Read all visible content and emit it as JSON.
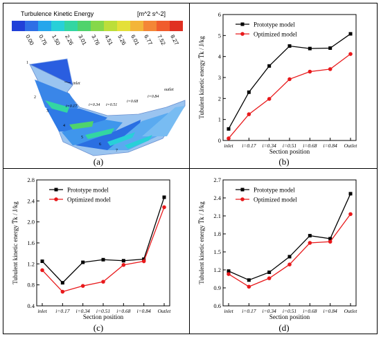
{
  "panel_labels": [
    "(a)",
    "(b)",
    "(c)",
    "(d)"
  ],
  "contour": {
    "title": "Turbulence Kinetic Energy",
    "unit": "[m^2 s^-2]",
    "colors": [
      "#2040d8",
      "#2e6fe6",
      "#25a6ec",
      "#28d0d8",
      "#33d6a2",
      "#4fd36c",
      "#86d84a",
      "#bcde3a",
      "#e4e03a",
      "#f3b53a",
      "#f48636",
      "#f05c2d",
      "#e03022"
    ],
    "ticks": [
      "0.00",
      "0.75",
      "1.50",
      "2.26",
      "3.01",
      "3.76",
      "4.51",
      "5.26",
      "6.01",
      "6.77",
      "7.52",
      "8.27"
    ],
    "annotations": {
      "inlet": "inlet",
      "outlet": "outlet",
      "i017": "i=0.17",
      "i034": "i=0.34",
      "i051": "i=0.51",
      "i068": "i=0.68",
      "i084": "i=0.84",
      "blade_numbers": [
        "1",
        "2",
        "3",
        "4",
        "5",
        "6",
        "7"
      ]
    }
  },
  "chart_data": [
    {
      "panel": "(b)",
      "type": "line",
      "categories": [
        "inlet",
        "i=0.17",
        "i=0.34",
        "i=0.51",
        "i=0.68",
        "i=0.84",
        "Outlet"
      ],
      "series": [
        {
          "name": "Prototype model",
          "color": "#000000",
          "values": [
            0.55,
            2.3,
            3.55,
            4.5,
            4.38,
            4.4,
            5.08
          ]
        },
        {
          "name": "Optimized model",
          "color": "#e8191b",
          "values": [
            0.1,
            1.25,
            1.98,
            2.92,
            3.28,
            3.4,
            4.12
          ]
        }
      ],
      "xlabel": "Section position",
      "ylabel": "Tubulent kinetic energy  T̅k / J/kg",
      "ylim": [
        0,
        6
      ],
      "yticks": [
        "0",
        "1",
        "2",
        "3",
        "4",
        "5",
        "6"
      ],
      "legend": "top-left",
      "grid": false
    },
    {
      "panel": "(c)",
      "type": "line",
      "categories": [
        "inlet",
        "i=0.17",
        "i=0.34",
        "i=0.51",
        "i=0.68",
        "i=0.84",
        "Outlet"
      ],
      "series": [
        {
          "name": "Prototype model",
          "color": "#000000",
          "values": [
            1.25,
            0.84,
            1.23,
            1.28,
            1.26,
            1.29,
            2.47
          ]
        },
        {
          "name": "Optimized model",
          "color": "#e8191b",
          "values": [
            1.08,
            0.67,
            0.78,
            0.86,
            1.18,
            1.25,
            2.28
          ]
        }
      ],
      "xlabel": "Section position",
      "ylabel": "Tubulent kinetic energy  T̅k / J/kg",
      "ylim": [
        0.4,
        2.8
      ],
      "yticks": [
        "0.4",
        "0.8",
        "1.2",
        "1.6",
        "2.0",
        "2.4",
        "2.8"
      ],
      "legend": "top-left",
      "grid": false
    },
    {
      "panel": "(d)",
      "type": "line",
      "categories": [
        "inlet",
        "i=0.17",
        "i=0.34",
        "i=0.51",
        "i=0.68",
        "i=0.84",
        "Outlet"
      ],
      "series": [
        {
          "name": "Prototype model",
          "color": "#000000",
          "values": [
            1.18,
            1.03,
            1.16,
            1.42,
            1.77,
            1.72,
            2.47
          ]
        },
        {
          "name": "Optimized model",
          "color": "#e8191b",
          "values": [
            1.13,
            0.92,
            1.06,
            1.29,
            1.65,
            1.67,
            2.13
          ]
        }
      ],
      "xlabel": "Section position",
      "ylabel": "Tubulent kinetic energy  T̅k / J/kg",
      "ylim": [
        0.6,
        2.7
      ],
      "yticks": [
        "0.6",
        "0.9",
        "1.2",
        "1.5",
        "1.8",
        "2.1",
        "2.4",
        "2.7"
      ],
      "legend": "top-left",
      "grid": false
    }
  ]
}
